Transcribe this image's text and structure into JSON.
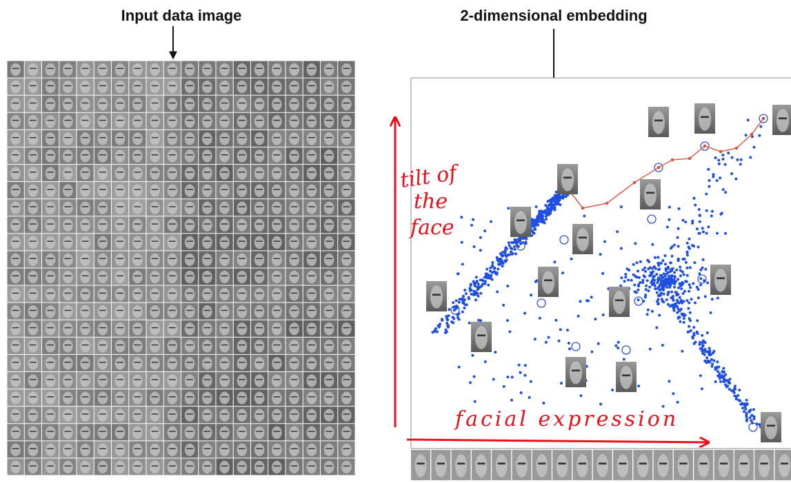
{
  "header": {
    "left_title": "Input data image",
    "right_title": "2-dimensional embedding"
  },
  "annotations": {
    "vertical": [
      "tilt of",
      "the",
      "face"
    ],
    "horizontal": "facial expression"
  }
}
